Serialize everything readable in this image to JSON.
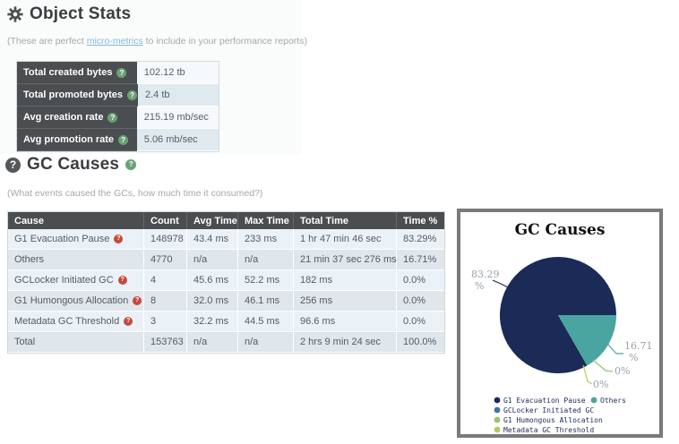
{
  "object_stats": {
    "heading": "Object Stats",
    "subtitle": {
      "prefix": "(These are perfect ",
      "link": "micro-metrics",
      "suffix": " to include in your performance reports)"
    },
    "rows": [
      {
        "label": "Total created bytes",
        "value": "102.12 tb"
      },
      {
        "label": "Total promoted bytes",
        "value": "2.4 tb"
      },
      {
        "label": "Avg creation rate",
        "value": "215.19 mb/sec"
      },
      {
        "label": "Avg promotion rate",
        "value": "5.06 mb/sec"
      }
    ]
  },
  "gc_causes": {
    "heading": "GC Causes",
    "subtitle": "(What events caused the GCs, how much time it consumed?)",
    "table": {
      "headers": [
        "Cause",
        "Count",
        "Avg Time",
        "Max Time",
        "Total Time",
        "Time %"
      ],
      "rows": [
        {
          "cause": "G1 Evacuation Pause",
          "help": true,
          "count": "148978",
          "avg": "43.4 ms",
          "max": "233 ms",
          "total": "1 hr 47 min 46 sec",
          "pct": "83.29%"
        },
        {
          "cause": "Others",
          "help": false,
          "count": "4770",
          "avg": "n/a",
          "max": "n/a",
          "total": "21 min 37 sec 276 ms",
          "pct": "16.71%"
        },
        {
          "cause": "GCLocker Initiated GC",
          "help": true,
          "count": "4",
          "avg": "45.6 ms",
          "max": "52.2 ms",
          "total": "182 ms",
          "pct": "0.0%"
        },
        {
          "cause": "G1 Humongous Allocation",
          "help": true,
          "count": "8",
          "avg": "32.0 ms",
          "max": "46.1 ms",
          "total": "256 ms",
          "pct": "0.0%"
        },
        {
          "cause": "Metadata GC Threshold",
          "help": true,
          "count": "3",
          "avg": "32.2 ms",
          "max": "44.5 ms",
          "total": "96.6 ms",
          "pct": "0.0%"
        },
        {
          "cause": "Total",
          "help": false,
          "count": "153763",
          "avg": "n/a",
          "max": "n/a",
          "total": "2 hrs 9 min 24 sec",
          "pct": "100.0%"
        }
      ]
    }
  },
  "chart_data": {
    "type": "pie",
    "title": "GC Causes",
    "labels": [
      "G1 Evacuation Pause",
      "Others",
      "GCLocker Initiated GC",
      "G1 Humongous Allocation",
      "Metadata GC Threshold"
    ],
    "values": [
      83.29,
      16.71,
      0.0,
      0.0,
      0.0
    ],
    "colors": [
      "#1b2a57",
      "#4aa5a0",
      "#3f72ad",
      "#93c47d",
      "#b5c95d"
    ],
    "legend_position": "bottom",
    "callouts": [
      {
        "line1": "83.29",
        "line2": "%"
      },
      {
        "line1": "16.71",
        "line2": "%"
      },
      {
        "line1": "0%",
        "line2": ""
      },
      {
        "line1": "0%",
        "line2": ""
      }
    ]
  },
  "icons": {
    "help_glyph": "?"
  }
}
